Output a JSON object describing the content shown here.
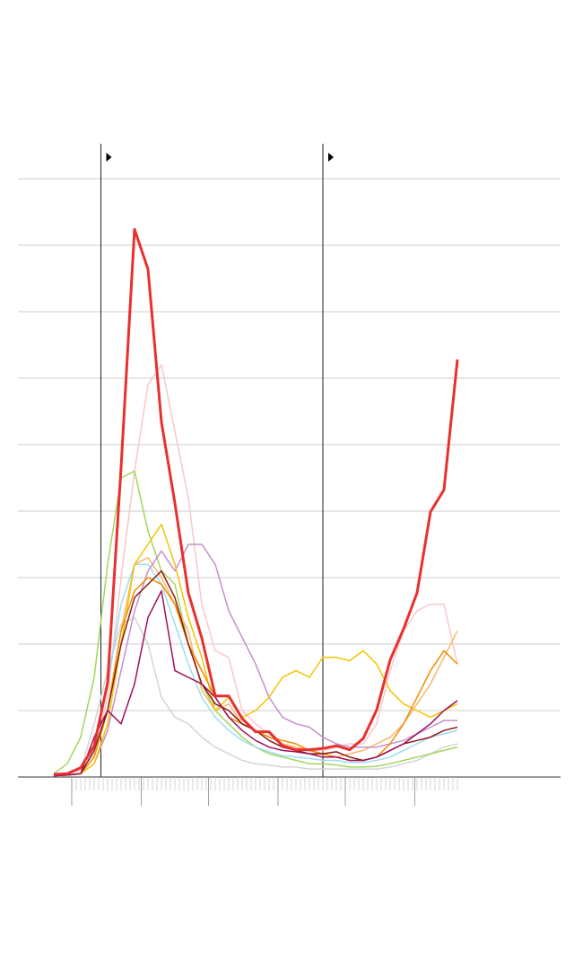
{
  "chart_data": {
    "type": "line",
    "x": [
      0,
      6,
      12,
      18,
      24,
      30,
      36,
      42,
      48,
      54,
      60,
      66,
      72,
      78,
      84,
      90,
      96,
      102,
      108,
      114,
      120,
      126,
      132,
      138,
      144,
      150,
      156,
      162,
      168,
      174,
      180
    ],
    "xlim": [
      -16,
      226
    ],
    "ylim": [
      0,
      9
    ],
    "yticks": [
      0,
      1,
      2,
      3,
      4,
      5,
      6,
      7,
      8,
      9
    ],
    "grid": true,
    "xticks": [
      8,
      39,
      69,
      100,
      130,
      161
    ],
    "minor_xticks": [
      8,
      10,
      12,
      14,
      16,
      18,
      20,
      22,
      24,
      26,
      28,
      30,
      32,
      34,
      36,
      38,
      40,
      42,
      44,
      46,
      48,
      50,
      52,
      54,
      56,
      58,
      60,
      62,
      64,
      66,
      68,
      70,
      72,
      74,
      76,
      78,
      80,
      82,
      84,
      86,
      88,
      90,
      92,
      94,
      96,
      98,
      100,
      102,
      104,
      106,
      108,
      110,
      112,
      114,
      116,
      118,
      120,
      122,
      124,
      126,
      128,
      130,
      132,
      134,
      136,
      138,
      140,
      142,
      144,
      146,
      148,
      150,
      152,
      154,
      156,
      158,
      160,
      162,
      164,
      166,
      168,
      170,
      172,
      174,
      176,
      178,
      180
    ],
    "markers": [
      21,
      120
    ],
    "series": [
      {
        "color": "#f7c9c9",
        "values": [
          0.04,
          0.05,
          0.1,
          0.35,
          1.2,
          3.0,
          4.6,
          5.9,
          6.2,
          5.2,
          4.2,
          2.6,
          1.9,
          1.8,
          1.0,
          0.8,
          0.65,
          0.5,
          0.45,
          0.4,
          0.4,
          0.45,
          0.5,
          0.5,
          0.8,
          1.6,
          2.2,
          2.5,
          2.6,
          2.6,
          1.7
        ]
      },
      {
        "color": "#d4d4d4",
        "values": [
          0.02,
          0.05,
          0.1,
          0.8,
          1.6,
          2.3,
          2.4,
          2.0,
          1.2,
          0.9,
          0.8,
          0.6,
          0.45,
          0.35,
          0.25,
          0.2,
          0.18,
          0.15,
          0.15,
          0.12,
          0.12,
          0.12,
          0.12,
          0.12,
          0.12,
          0.15,
          0.2,
          0.25,
          0.35,
          0.45,
          0.5
        ]
      },
      {
        "color": "#a4d65e",
        "values": [
          0.05,
          0.2,
          0.6,
          1.5,
          3.2,
          4.5,
          4.6,
          3.7,
          3.1,
          2.9,
          2.0,
          1.4,
          1.0,
          0.8,
          0.6,
          0.45,
          0.35,
          0.3,
          0.25,
          0.2,
          0.2,
          0.18,
          0.15,
          0.15,
          0.16,
          0.2,
          0.25,
          0.3,
          0.35,
          0.4,
          0.45
        ]
      },
      {
        "color": "#9fdcf2",
        "values": [
          0.02,
          0.03,
          0.05,
          0.4,
          1.4,
          2.6,
          3.2,
          3.2,
          2.9,
          2.3,
          1.7,
          1.2,
          0.9,
          0.7,
          0.55,
          0.45,
          0.38,
          0.32,
          0.3,
          0.28,
          0.25,
          0.25,
          0.22,
          0.22,
          0.25,
          0.3,
          0.4,
          0.5,
          0.6,
          0.65,
          0.7
        ]
      },
      {
        "color": "#f7b86a",
        "values": [
          0.02,
          0.03,
          0.05,
          0.3,
          1.0,
          2.2,
          3.2,
          3.3,
          3.0,
          2.6,
          2.2,
          1.3,
          1.0,
          1.1,
          0.8,
          0.7,
          0.6,
          0.5,
          0.45,
          0.4,
          0.35,
          0.3,
          0.35,
          0.4,
          0.5,
          0.6,
          0.8,
          1.1,
          1.4,
          1.8,
          2.2
        ]
      },
      {
        "color": "#c68fcb",
        "values": [
          0.02,
          0.03,
          0.05,
          0.2,
          0.7,
          1.6,
          2.5,
          3.1,
          3.4,
          3.1,
          3.5,
          3.5,
          3.2,
          2.5,
          2.1,
          1.7,
          1.2,
          0.9,
          0.8,
          0.75,
          0.6,
          0.5,
          0.45,
          0.45,
          0.45,
          0.5,
          0.55,
          0.65,
          0.75,
          0.85,
          0.85
        ]
      },
      {
        "color": "#f2c500",
        "values": [
          0.02,
          0.03,
          0.05,
          0.2,
          0.8,
          2.0,
          3.2,
          3.5,
          3.8,
          3.2,
          2.4,
          1.8,
          1.0,
          1.2,
          0.9,
          1.0,
          1.2,
          1.5,
          1.6,
          1.5,
          1.8,
          1.8,
          1.75,
          1.9,
          1.7,
          1.3,
          1.1,
          1.0,
          0.9,
          1.0,
          1.1
        ]
      },
      {
        "color": "#f08c00",
        "values": [
          0.02,
          0.03,
          0.05,
          0.3,
          1.0,
          2.2,
          2.8,
          3.0,
          2.9,
          2.6,
          2.0,
          1.6,
          1.2,
          0.9,
          0.8,
          0.7,
          0.6,
          0.55,
          0.5,
          0.4,
          0.35,
          0.3,
          0.25,
          0.25,
          0.3,
          0.5,
          0.8,
          1.2,
          1.6,
          1.9,
          1.7
        ]
      },
      {
        "color": "#8b1a1a",
        "values": [
          0.02,
          0.03,
          0.05,
          0.4,
          1.0,
          2.0,
          2.7,
          2.9,
          3.1,
          2.7,
          2.0,
          1.4,
          1.1,
          1.0,
          0.8,
          0.7,
          0.55,
          0.45,
          0.4,
          0.35,
          0.35,
          0.38,
          0.3,
          0.25,
          0.3,
          0.4,
          0.5,
          0.55,
          0.6,
          0.7,
          0.75
        ]
      },
      {
        "color": "#a0105a",
        "values": [
          0.02,
          0.03,
          0.05,
          0.6,
          1.0,
          0.8,
          1.4,
          2.4,
          2.8,
          1.6,
          1.5,
          1.4,
          1.2,
          0.9,
          0.7,
          0.55,
          0.45,
          0.4,
          0.38,
          0.35,
          0.3,
          0.3,
          0.25,
          0.25,
          0.3,
          0.4,
          0.5,
          0.65,
          0.8,
          1.0,
          1.15
        ]
      },
      {
        "color": "#e8302f",
        "values": [
          0.04,
          0.05,
          0.14,
          0.47,
          1.42,
          4.66,
          8.24,
          7.64,
          5.34,
          4.12,
          2.77,
          2.09,
          1.22,
          1.22,
          0.88,
          0.68,
          0.68,
          0.47,
          0.41,
          0.41,
          0.43,
          0.47,
          0.41,
          0.58,
          1.01,
          1.76,
          2.23,
          2.77,
          3.99,
          4.32,
          6.28
        ]
      }
    ]
  }
}
